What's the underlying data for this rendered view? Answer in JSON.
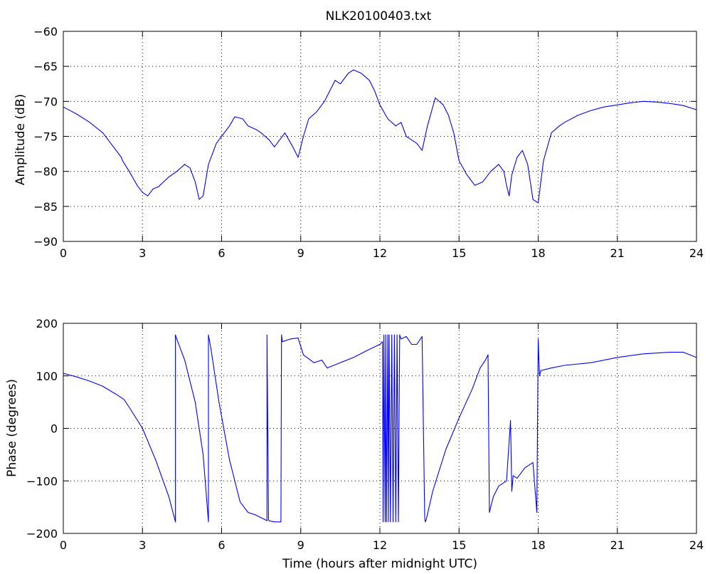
{
  "chart_data": [
    {
      "type": "line",
      "title": "NLK20100403.txt",
      "xlabel": "",
      "ylabel": "Amplitude (dB)",
      "xlim": [
        0,
        24
      ],
      "ylim": [
        -90,
        -60
      ],
      "xticks": [
        0,
        3,
        6,
        9,
        12,
        15,
        18,
        21,
        24
      ],
      "yticks": [
        -90,
        -85,
        -80,
        -75,
        -70,
        -65,
        -60
      ],
      "grid": true,
      "color": "#0000ff",
      "series": [
        {
          "x": [
            0,
            0.5,
            1.0,
            1.5,
            1.9,
            2.2,
            2.25,
            2.5,
            2.8,
            3.0,
            3.2,
            3.4,
            3.6,
            3.8,
            4.0,
            4.3,
            4.6,
            4.8,
            5.0,
            5.15,
            5.3,
            5.5,
            5.8,
            6.0,
            6.3,
            6.5,
            6.8,
            7.0,
            7.3,
            7.5,
            7.8,
            8.0,
            8.2,
            8.4,
            8.7,
            8.9,
            9.1,
            9.3,
            9.6,
            9.9,
            10.1,
            10.3,
            10.5,
            10.8,
            11.0,
            11.3,
            11.6,
            11.8,
            12.0,
            12.3,
            12.6,
            12.8,
            13.0,
            13.2,
            13.4,
            13.6,
            13.8,
            14.1,
            14.4,
            14.6,
            14.8,
            15.0,
            15.3,
            15.6,
            15.9,
            16.2,
            16.5,
            16.7,
            16.8,
            16.9,
            17.0,
            17.2,
            17.4,
            17.6,
            17.8,
            18.0,
            18.2,
            18.5,
            18.8,
            19.0,
            19.5,
            20.0,
            20.5,
            21.0,
            21.5,
            22.0,
            22.5,
            23.0,
            23.5,
            24.0
          ],
          "y": [
            -70.8,
            -71.8,
            -73.0,
            -74.5,
            -76.5,
            -78.0,
            -78.5,
            -80.0,
            -82.0,
            -83.0,
            -83.5,
            -82.5,
            -82.2,
            -81.5,
            -80.8,
            -80.0,
            -79.0,
            -79.5,
            -81.5,
            -84.0,
            -83.5,
            -79.0,
            -76.0,
            -75.0,
            -73.5,
            -72.2,
            -72.5,
            -73.5,
            -74.0,
            -74.5,
            -75.5,
            -76.5,
            -75.5,
            -74.5,
            -76.5,
            -78.0,
            -75.0,
            -72.5,
            -71.5,
            -70.0,
            -68.5,
            -67.0,
            -67.5,
            -66.0,
            -65.5,
            -66.0,
            -67.0,
            -68.5,
            -70.5,
            -72.5,
            -73.5,
            -73.0,
            -75.0,
            -75.5,
            -76.0,
            -77.0,
            -73.5,
            -69.5,
            -70.5,
            -72.0,
            -74.5,
            -78.5,
            -80.5,
            -82.0,
            -81.5,
            -80.0,
            -79.0,
            -80.0,
            -82.0,
            -83.5,
            -80.5,
            -78.0,
            -77.0,
            -79.0,
            -84.0,
            -84.5,
            -78.5,
            -74.5,
            -73.5,
            -73.0,
            -72.0,
            -71.3,
            -70.8,
            -70.5,
            -70.2,
            -70.0,
            -70.1,
            -70.3,
            -70.6,
            -71.2
          ]
        }
      ]
    },
    {
      "type": "line",
      "title": "",
      "xlabel": "Time (hours after midnight UTC)",
      "ylabel": "Phase (degrees)",
      "xlim": [
        0,
        24
      ],
      "ylim": [
        -200,
        200
      ],
      "xticks": [
        0,
        3,
        6,
        9,
        12,
        15,
        18,
        21,
        24
      ],
      "yticks": [
        -200,
        -100,
        0,
        100,
        200
      ],
      "grid": true,
      "color": "#0000ff",
      "series": [
        {
          "x": [
            0,
            0.5,
            1.0,
            1.5,
            2.0,
            2.3,
            2.5,
            3.0,
            3.5,
            4.0,
            4.25,
            4.25,
            4.3,
            4.6,
            5.0,
            5.3,
            5.5,
            5.5,
            5.6,
            5.9,
            6.3,
            6.7,
            7.0,
            7.3,
            7.7,
            7.72,
            7.72,
            7.78,
            7.8,
            8.0,
            8.25,
            8.27,
            8.3,
            8.6,
            8.9,
            9.1,
            9.5,
            9.8,
            10.0,
            10.5,
            11.0,
            11.5,
            12.0,
            12.1,
            12.12,
            12.15,
            12.2,
            12.22,
            12.25,
            12.3,
            12.32,
            12.35,
            12.4,
            12.45,
            12.5,
            12.55,
            12.6,
            12.65,
            12.7,
            12.75,
            12.8,
            13.0,
            13.2,
            13.4,
            13.6,
            13.7,
            13.72,
            13.75,
            14.0,
            14.5,
            15.0,
            15.5,
            15.8,
            16.0,
            16.1,
            16.15,
            16.2,
            16.3,
            16.5,
            16.8,
            16.95,
            17.0,
            17.05,
            17.2,
            17.5,
            17.8,
            17.95,
            18.0,
            18.05,
            18.1,
            18.5,
            19.0,
            20.0,
            21.0,
            22.0,
            23.0,
            23.5,
            24.0
          ],
          "y": [
            105,
            98,
            90,
            80,
            65,
            55,
            40,
            0,
            -60,
            -130,
            -178,
            178,
            170,
            130,
            50,
            -50,
            -178,
            178,
            150,
            50,
            -60,
            -140,
            -160,
            -165,
            -175,
            -176,
            178,
            -175,
            -176,
            -178,
            -178,
            178,
            165,
            170,
            172,
            140,
            125,
            130,
            115,
            125,
            135,
            148,
            160,
            165,
            -178,
            178,
            -178,
            178,
            -178,
            178,
            -178,
            178,
            -178,
            178,
            -178,
            178,
            -178,
            178,
            -178,
            178,
            170,
            175,
            160,
            160,
            175,
            -170,
            -178,
            -175,
            -120,
            -40,
            20,
            75,
            115,
            130,
            140,
            -160,
            -150,
            -130,
            -110,
            -100,
            15,
            -120,
            -90,
            -95,
            -75,
            -65,
            -160,
            170,
            100,
            110,
            115,
            120,
            125,
            135,
            142,
            145,
            145,
            135
          ]
        }
      ]
    }
  ]
}
